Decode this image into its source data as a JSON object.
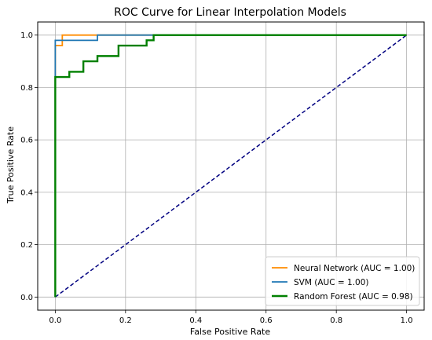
{
  "chart_data": {
    "type": "line",
    "title": "ROC Curve for Linear Interpolation Models",
    "xlabel": "False Positive Rate",
    "ylabel": "True Positive Rate",
    "xlim": [
      -0.05,
      1.05
    ],
    "ylim": [
      -0.05,
      1.05
    ],
    "xticks": [
      "0.0",
      "0.2",
      "0.4",
      "0.6",
      "0.8",
      "1.0"
    ],
    "yticks": [
      "0.0",
      "0.2",
      "0.4",
      "0.6",
      "0.8",
      "1.0"
    ],
    "grid": true,
    "legend_position": "lower-right",
    "series": [
      {
        "name": "Neural Network (AUC = 1.00)",
        "color": "#ff8c00",
        "x": [
          0.0,
          0.0,
          0.02,
          0.02,
          1.0
        ],
        "y": [
          0.0,
          0.96,
          0.96,
          1.0,
          1.0
        ]
      },
      {
        "name": "SVM (AUC = 1.00)",
        "color": "#1f77b4",
        "x": [
          0.0,
          0.0,
          0.12,
          0.12,
          0.28,
          0.28,
          1.0
        ],
        "y": [
          0.0,
          0.98,
          0.98,
          1.0,
          1.0,
          1.0,
          1.0
        ]
      },
      {
        "name": "Random Forest (AUC = 0.98)",
        "color": "#008000",
        "x": [
          0.0,
          0.0,
          0.04,
          0.04,
          0.08,
          0.08,
          0.12,
          0.12,
          0.18,
          0.18,
          0.26,
          0.26,
          0.28,
          0.28,
          1.0
        ],
        "y": [
          0.0,
          0.84,
          0.84,
          0.86,
          0.86,
          0.9,
          0.9,
          0.92,
          0.92,
          0.96,
          0.96,
          0.98,
          0.98,
          1.0,
          1.0
        ]
      }
    ],
    "reference_line": {
      "color": "#000080",
      "x": [
        0.0,
        1.0
      ],
      "y": [
        0.0,
        1.0
      ]
    }
  }
}
